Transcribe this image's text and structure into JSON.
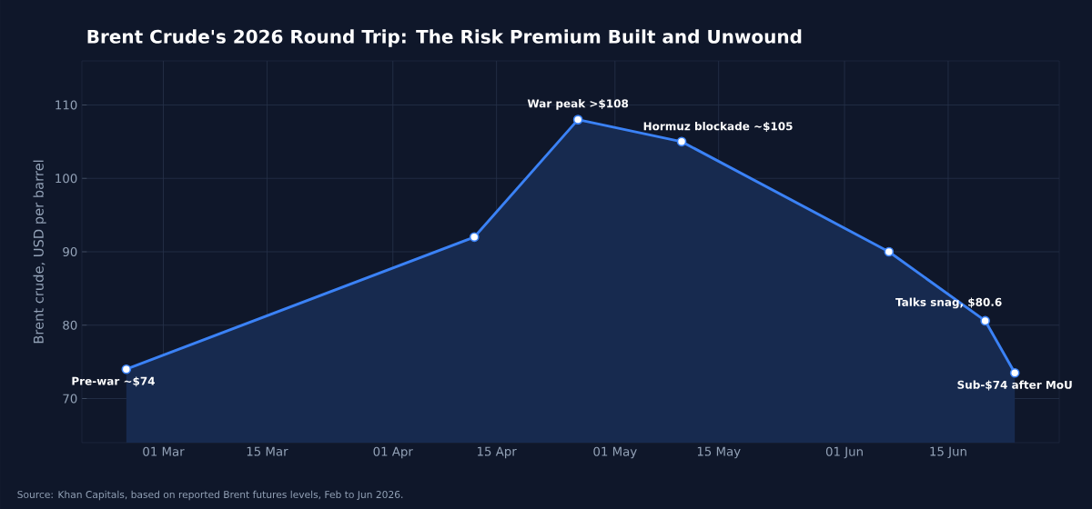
{
  "chart_data": {
    "type": "area",
    "title": "Brent Crude's 2026 Round Trip: The Risk Premium Built and Unwound",
    "ylabel": "Brent crude, USD per barrel",
    "x": [
      "2026-02-24",
      "2026-04-12",
      "2026-04-26",
      "2026-05-10",
      "2026-06-07",
      "2026-06-20",
      "2026-06-24"
    ],
    "series": [
      {
        "color": "#3b82f6",
        "values": [
          74,
          92,
          108,
          105,
          90,
          80.6,
          73.5
        ]
      }
    ],
    "xlim": [
      "2026-02-18",
      "2026-06-30"
    ],
    "ylim": [
      64,
      116
    ],
    "xticks": [
      {
        "value": "2026-03-01",
        "label": "01 Mar"
      },
      {
        "value": "2026-03-15",
        "label": "15 Mar"
      },
      {
        "value": "2026-04-01",
        "label": "01 Apr"
      },
      {
        "value": "2026-04-15",
        "label": "15 Apr"
      },
      {
        "value": "2026-05-01",
        "label": "01 May"
      },
      {
        "value": "2026-05-15",
        "label": "15 May"
      },
      {
        "value": "2026-06-01",
        "label": "01 Jun"
      },
      {
        "value": "2026-06-15",
        "label": "15 Jun"
      }
    ],
    "yticks": [
      70,
      80,
      90,
      100,
      110
    ],
    "grid": true,
    "marker": "circle",
    "line_style": "solid",
    "annotations": [
      {
        "text": "Pre-war ~$74",
        "x": "2026-02-24",
        "y": 74
      },
      {
        "text": "War peak >$108",
        "x": "2026-04-26",
        "y": 108
      },
      {
        "text": "Hormuz blockade ~$105",
        "x": "2026-05-10",
        "y": 105
      },
      {
        "text": "Talks snag, $80.6",
        "x": "2026-06-20",
        "y": 80.6
      },
      {
        "text": "Sub-$74 after MoU",
        "x": "2026-06-24",
        "y": 73.5
      },
      "Source: Khan Capitals, based on reported Brent futures levels, Feb to Jun 2026."
    ]
  }
}
